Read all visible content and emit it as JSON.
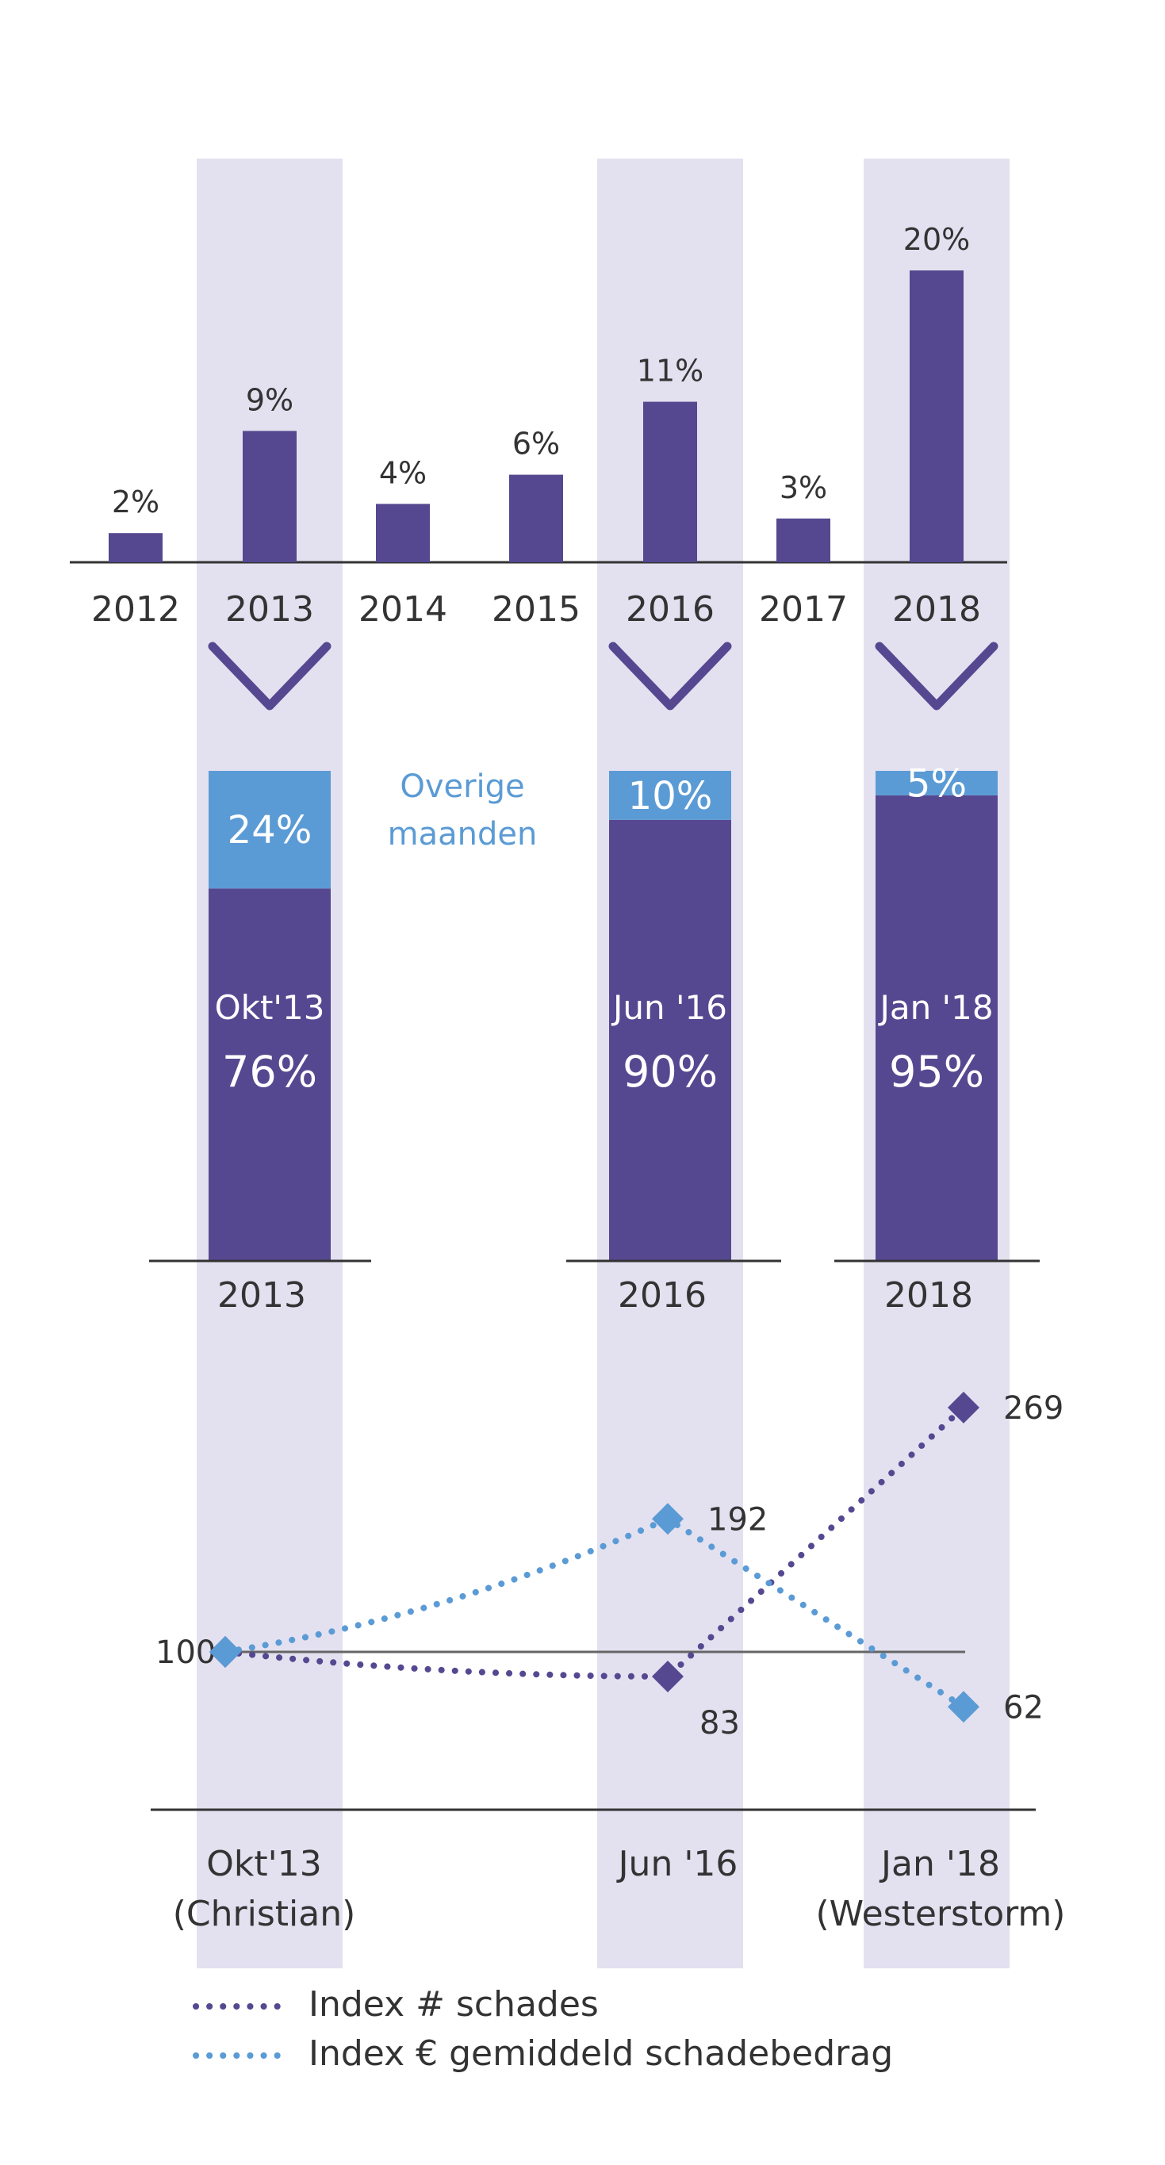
{
  "colors": {
    "purple": "#564890",
    "blue": "#5b9bd5",
    "band": "#e3e1f0",
    "axis": "#333333",
    "baseline": "#666666",
    "text": "#333333",
    "white": "#ffffff"
  },
  "chart_data": [
    {
      "type": "bar",
      "categories": [
        "2012",
        "2013",
        "2014",
        "2015",
        "2016",
        "2017",
        "2018"
      ],
      "values": [
        2,
        9,
        4,
        6,
        11,
        3,
        20
      ],
      "value_labels": [
        "2%",
        "9%",
        "4%",
        "6%",
        "11%",
        "3%",
        "20%"
      ],
      "highlighted": [
        "2013",
        "2016",
        "2018"
      ],
      "ylim": [
        0,
        20
      ]
    },
    {
      "type": "bar",
      "stacked": true,
      "categories": [
        "2013",
        "2016",
        "2018"
      ],
      "series": [
        {
          "color": "#564890",
          "values": [
            76,
            90,
            95
          ],
          "inner_labels": [
            "Okt'13",
            "Jun '16",
            "Jan '18"
          ],
          "value_labels": [
            "76%",
            "90%",
            "95%"
          ]
        },
        {
          "name": "Overige maanden",
          "color": "#5b9bd5",
          "values": [
            24,
            10,
            5
          ],
          "value_labels": [
            "24%",
            "10%",
            "5%"
          ]
        }
      ],
      "annotation": [
        "Overige",
        "maanden"
      ],
      "ylim": [
        0,
        100
      ]
    },
    {
      "type": "line",
      "categories": [
        "Okt'13",
        "Jun '16",
        "Jan '18"
      ],
      "category_sublabels": [
        "(Christian)",
        "",
        "(Westerstorm)"
      ],
      "baseline": 100,
      "baseline_label": "100",
      "series": [
        {
          "name": "Index # schades",
          "color": "#564890",
          "values": [
            100,
            83,
            269
          ],
          "point_labels": [
            "",
            "83",
            "269"
          ]
        },
        {
          "name": "Index € gemiddeld schadebedrag",
          "color": "#5b9bd5",
          "values": [
            100,
            192,
            62
          ],
          "point_labels": [
            "",
            "192",
            "62"
          ]
        }
      ],
      "ylim": [
        0,
        300
      ]
    }
  ]
}
